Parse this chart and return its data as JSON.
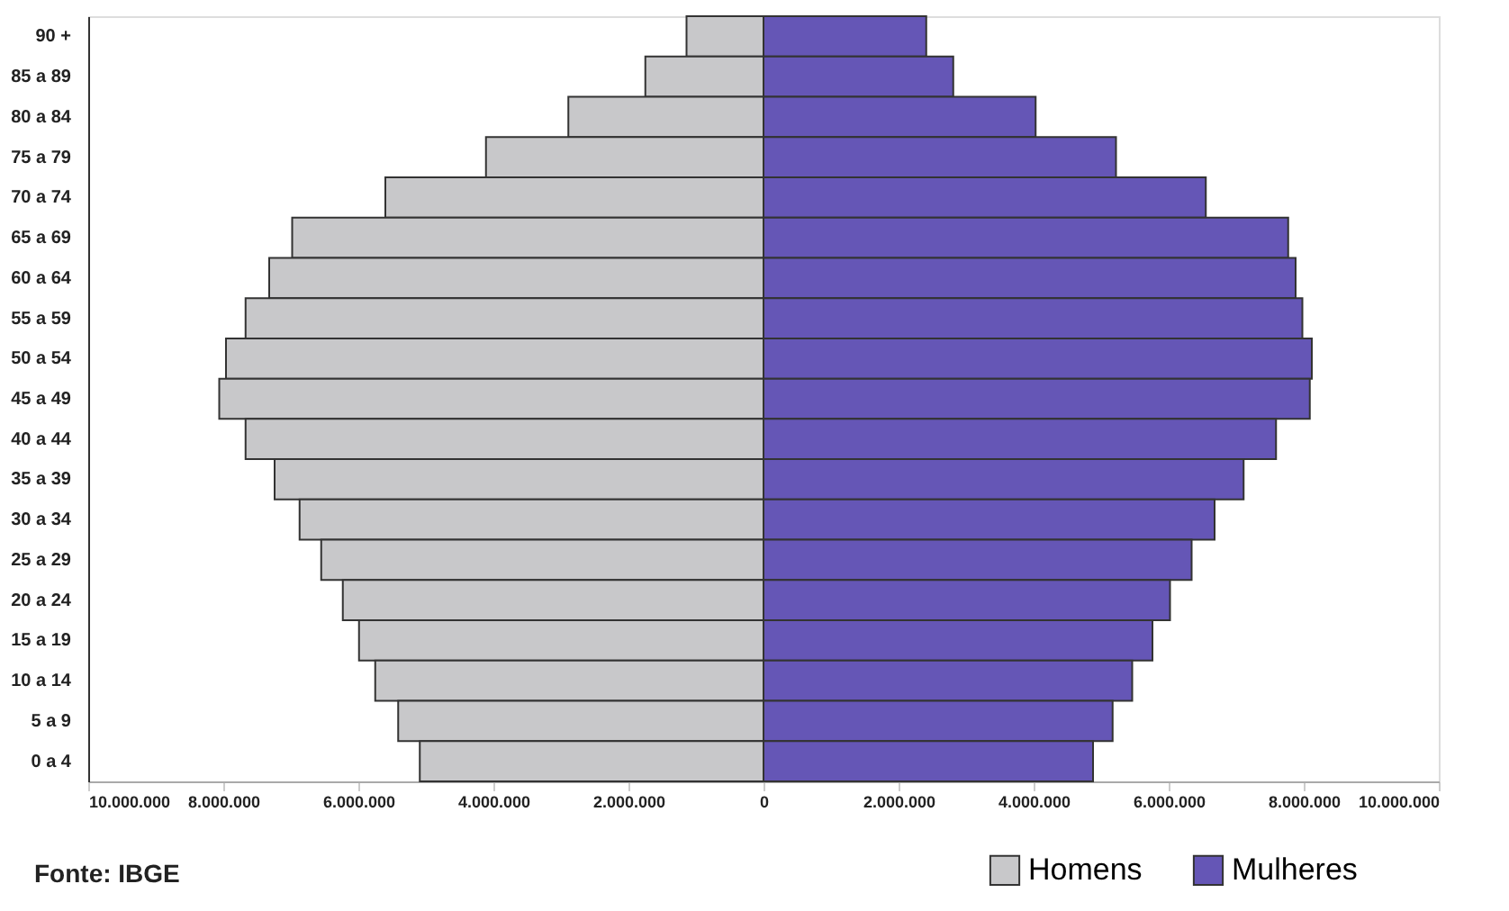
{
  "chart_data": {
    "type": "bar",
    "orientation": "horizontal",
    "categories": [
      "90 +",
      "85 a 89",
      "80 a 84",
      "75 a 79",
      "70 a 74",
      "65 a 69",
      "60 a 64",
      "55 a 59",
      "50 a 54",
      "45 a 49",
      "40 a 44",
      "35 a 39",
      "30 a 34",
      "25 a 29",
      "20 a 24",
      "15 a 19",
      "10 a 14",
      "5 a 9",
      "0 a 4"
    ],
    "series": [
      {
        "name": "Homens",
        "color": "#c8c8ca",
        "values": [
          -1140000,
          -1750000,
          -2890000,
          -4110000,
          -5600000,
          -6980000,
          -7320000,
          -7670000,
          -7960000,
          -8060000,
          -7670000,
          -7240000,
          -6870000,
          -6550000,
          -6230000,
          -5990000,
          -5750000,
          -5410000,
          -5090000
        ]
      },
      {
        "name": "Mulheres",
        "color": "#6556b6",
        "values": [
          2410000,
          2810000,
          4030000,
          5220000,
          6550000,
          7770000,
          7880000,
          7980000,
          8120000,
          8090000,
          7590000,
          7110000,
          6680000,
          6340000,
          6020000,
          5760000,
          5460000,
          5170000,
          4880000
        ]
      }
    ],
    "xlim": [
      -10000000,
      10000000
    ],
    "xticks": [
      {
        "value": -10000000,
        "label": "10.000.000"
      },
      {
        "value": -8000000,
        "label": "8.000.000"
      },
      {
        "value": -6000000,
        "label": "6.000.000"
      },
      {
        "value": -4000000,
        "label": "4.000.000"
      },
      {
        "value": -2000000,
        "label": "2.000.000"
      },
      0,
      {
        "value": 2000000,
        "label": "2.000.000"
      },
      {
        "value": 4000000,
        "label": "4.000.000"
      },
      {
        "value": 6000000,
        "label": "6.000.000"
      },
      {
        "value": 8000000,
        "label": "8.000.000"
      },
      {
        "value": 10000000,
        "label": "10.000.000"
      }
    ],
    "grid": false,
    "stacked": true,
    "legend": "bottom right",
    "annotations": [
      "Fonte: IBGE"
    ]
  }
}
